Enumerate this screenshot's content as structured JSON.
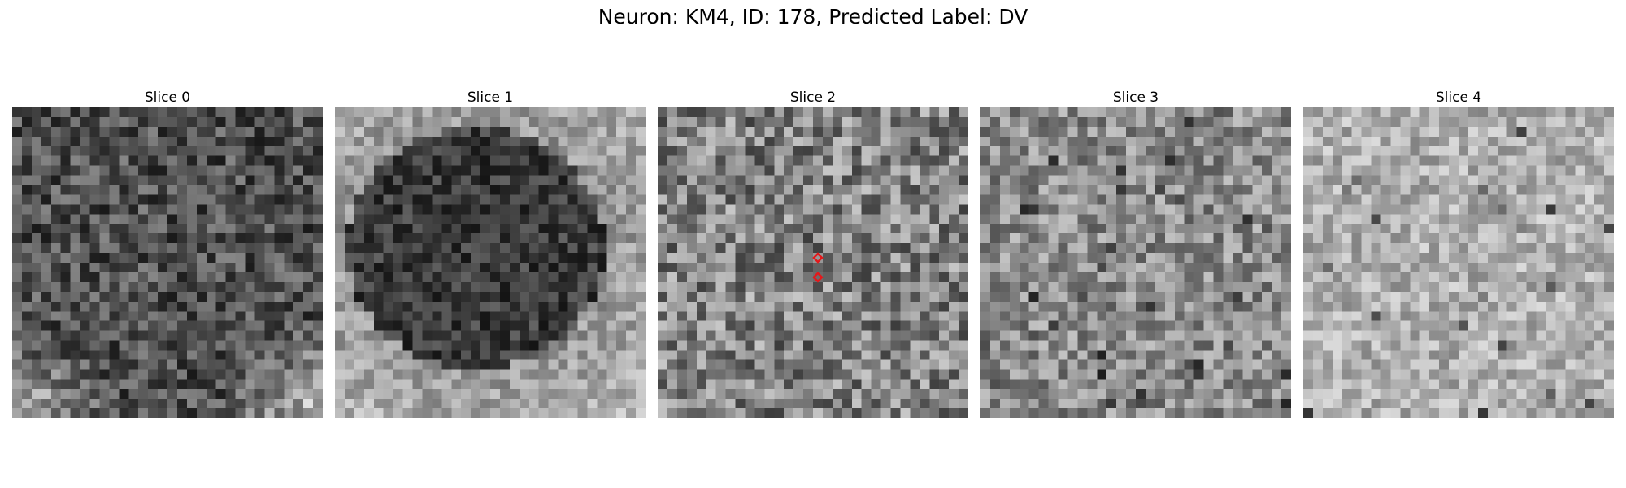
{
  "figure": {
    "title": "Neuron: KM4, ID: 178, Predicted Label: DV"
  },
  "grid_size": 32,
  "marker_color": "#e3191c",
  "slices": [
    {
      "title": "Slice 0",
      "seed": 11,
      "base": 95,
      "contrast": 55,
      "style": "dark-blob-bright-corners",
      "markers": []
    },
    {
      "title": "Slice 1",
      "seed": 23,
      "base": 150,
      "contrast": 40,
      "style": "dark-center-bright-rim",
      "markers": []
    },
    {
      "title": "Slice 2",
      "seed": 37,
      "base": 130,
      "contrast": 70,
      "style": "noisy",
      "markers": [
        {
          "col": 16,
          "row": 15
        },
        {
          "col": 16,
          "row": 17
        }
      ]
    },
    {
      "title": "Slice 3",
      "seed": 41,
      "base": 140,
      "contrast": 55,
      "style": "noisy-dark-spots",
      "markers": []
    },
    {
      "title": "Slice 4",
      "seed": 53,
      "base": 175,
      "contrast": 45,
      "style": "light-noisy",
      "markers": []
    }
  ]
}
